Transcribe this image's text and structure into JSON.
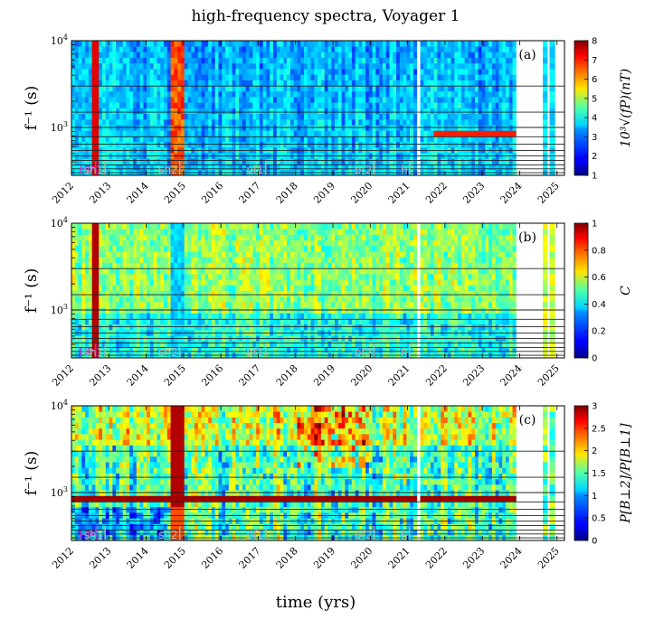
{
  "chart_data": [
    {
      "type": "heatmap",
      "panel_label": "(a)",
      "title": "high-frequency spectra, Voyager 1",
      "ylabel": "f⁻¹ (s)",
      "y_scale": "log",
      "ylim": [
        280,
        10000
      ],
      "y_ticks": [
        {
          "value": 1000,
          "base": "10",
          "exp": "3"
        },
        {
          "value": 10000,
          "base": "10",
          "exp": "4"
        }
      ],
      "xlim": [
        2012.0,
        2025.2
      ],
      "x_ticks": [
        "2012",
        "2013",
        "2014",
        "2015",
        "2016",
        "2017",
        "2018",
        "2019",
        "2020",
        "2021",
        "2022",
        "2023",
        "2024",
        "2025"
      ],
      "colorbar": {
        "label": "10³√(fP)(nT)",
        "range": [
          1,
          8
        ],
        "ticks": [
          "1",
          "2",
          "3",
          "4",
          "5",
          "6",
          "7",
          "8"
        ]
      },
      "horizontal_lines_s": [
        300,
        333,
        370,
        415,
        470,
        540,
        640,
        780,
        1000,
        1500,
        3000
      ],
      "data_gaps": [
        [
          2021.2,
          2021.3
        ],
        [
          2023.9,
          2024.6
        ],
        [
          2024.75,
          2024.8
        ]
      ],
      "events": [
        {
          "label": "HP",
          "year": 2012.65,
          "color": "#e020d0"
        },
        {
          "label": "sh1",
          "year": 2012.9,
          "color": "#b0b0b0"
        },
        {
          "label": "sh2",
          "year": 2014.9,
          "color": "#b0b0b0"
        },
        {
          "label": "pf1",
          "year": 2017.2,
          "color": "#b0b0b0"
        },
        {
          "label": "pf2",
          "year": 2020.1,
          "color": "#b0b0b0"
        },
        {
          "label": "h",
          "year": 2021.05,
          "color": "#b0b0b0"
        }
      ]
    },
    {
      "type": "heatmap",
      "panel_label": "(b)",
      "ylabel": "f⁻¹ (s)",
      "y_scale": "log",
      "ylim": [
        280,
        10000
      ],
      "y_ticks": [
        {
          "value": 1000,
          "base": "10",
          "exp": "3"
        },
        {
          "value": 10000,
          "base": "10",
          "exp": "4"
        }
      ],
      "xlim": [
        2012.0,
        2025.2
      ],
      "x_ticks": [
        "2012",
        "2013",
        "2014",
        "2015",
        "2016",
        "2017",
        "2018",
        "2019",
        "2020",
        "2021",
        "2022",
        "2023",
        "2024",
        "2025"
      ],
      "colorbar": {
        "label": "C",
        "range": [
          0,
          1
        ],
        "ticks": [
          "0",
          "0.2",
          "0.4",
          "0.6",
          "0.8",
          "1"
        ]
      },
      "horizontal_lines_s": [
        300,
        333,
        370,
        415,
        470,
        540,
        640,
        780,
        1000,
        1500,
        3000
      ],
      "data_gaps": [
        [
          2021.2,
          2021.3
        ],
        [
          2023.9,
          2024.6
        ],
        [
          2024.75,
          2024.8
        ]
      ],
      "events": [
        {
          "label": "HP",
          "year": 2012.65,
          "color": "#e020d0"
        },
        {
          "label": "sh1",
          "year": 2012.9,
          "color": "#b0b0b0"
        },
        {
          "label": "sh2",
          "year": 2014.9,
          "color": "#b0b0b0"
        },
        {
          "label": "pf1",
          "year": 2017.2,
          "color": "#b0b0b0"
        },
        {
          "label": "pf2",
          "year": 2020.1,
          "color": "#b0b0b0"
        },
        {
          "label": "h",
          "year": 2021.05,
          "color": "#b0b0b0"
        }
      ]
    },
    {
      "type": "heatmap",
      "panel_label": "(c)",
      "ylabel": "f⁻¹ (s)",
      "xlabel": "time (yrs)",
      "y_scale": "log",
      "ylim": [
        280,
        10000
      ],
      "y_ticks": [
        {
          "value": 1000,
          "base": "10",
          "exp": "3"
        },
        {
          "value": 10000,
          "base": "10",
          "exp": "4"
        }
      ],
      "xlim": [
        2012.0,
        2025.2
      ],
      "x_ticks": [
        "2012",
        "2013",
        "2014",
        "2015",
        "2016",
        "2017",
        "2018",
        "2019",
        "2020",
        "2021",
        "2022",
        "2023",
        "2024",
        "2025"
      ],
      "colorbar": {
        "label": "P[B⊥2]/P[B⊥1]",
        "range": [
          0,
          3
        ],
        "ticks": [
          "0",
          "0.5",
          "1",
          "1.5",
          "2",
          "2.5",
          "3"
        ]
      },
      "horizontal_lines_s": [
        300,
        333,
        370,
        415,
        470,
        540,
        640,
        780,
        1000,
        1500,
        3000
      ],
      "data_gaps": [
        [
          2021.2,
          2021.3
        ],
        [
          2023.9,
          2024.6
        ],
        [
          2024.75,
          2024.8
        ]
      ],
      "events": [
        {
          "label": "HP",
          "year": 2012.65,
          "color": "#e020d0"
        },
        {
          "label": "sh1",
          "year": 2012.9,
          "color": "#b0b0b0"
        },
        {
          "label": "sh2",
          "year": 2014.9,
          "color": "#b0b0b0"
        },
        {
          "label": "pf1",
          "year": 2017.2,
          "color": "#b0b0b0"
        },
        {
          "label": "pf2",
          "year": 2020.1,
          "color": "#b0b0b0"
        },
        {
          "label": "h",
          "year": 2021.05,
          "color": "#b0b0b0"
        }
      ]
    }
  ]
}
